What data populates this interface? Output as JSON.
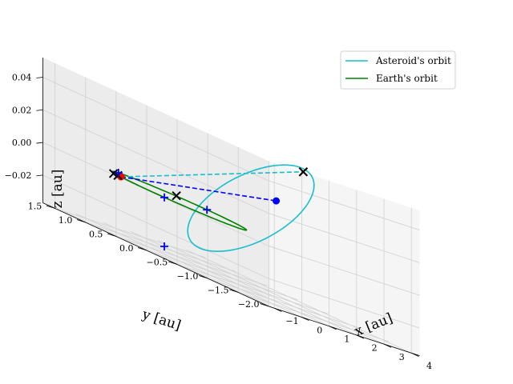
{
  "chart_data": {
    "type": "line",
    "projection": "3d",
    "xlabel": "x [au]",
    "ylabel": "y [au]",
    "zlabel": "z [au]",
    "xlim": [
      -1.2,
      4.3
    ],
    "ylim": [
      -2.0,
      1.7
    ],
    "zlim": [
      -0.037,
      0.052
    ],
    "x_ticks": [
      -1,
      0,
      1,
      2,
      3,
      4
    ],
    "y_ticks": [
      1.5,
      1.0,
      0.5,
      0.0,
      -0.5,
      -1.0,
      -1.5,
      -2.0
    ],
    "z_ticks": [
      0.04,
      0.02,
      0.0,
      -0.02
    ],
    "x_tick_labels": [
      "−1",
      "0",
      "1",
      "2",
      "3",
      "4"
    ],
    "y_tick_labels": [
      "1.5",
      "1.0",
      "0.5",
      "0.0",
      "−0.5",
      "−1.0",
      "−1.5",
      "−2.0"
    ],
    "z_tick_labels": [
      "0.04",
      "0.02",
      "0.00",
      "−0.02"
    ],
    "grid": true,
    "legend_position": "top-right",
    "series": [
      {
        "name": "Asteroid's orbit",
        "kind": "ellipse-orbit",
        "color": "#17becf",
        "center": [
          1.6,
          -0.45,
          0.012
        ],
        "semi_axis_a": [
          2.65,
          0.35,
          0.033
        ],
        "semi_axis_b": [
          -0.12,
          0.55,
          0.0
        ]
      },
      {
        "name": "Earth's orbit",
        "kind": "circle-orbit",
        "color": "#008000",
        "center": [
          0,
          0,
          0
        ],
        "radius": 1.0
      }
    ],
    "dashed_lines": [
      {
        "color": "#17becf",
        "from": [
          -0.8,
          0.6,
          0.0
        ],
        "to": [
          3.4,
          -0.5,
          0.045
        ]
      },
      {
        "color": "#0000ff",
        "from": [
          -0.8,
          0.6,
          0.0
        ],
        "to": [
          2.3,
          -0.55,
          0.022
        ]
      }
    ],
    "points": [
      {
        "kind": "dot",
        "color": "#0000ff",
        "xyz": [
          2.3,
          -0.55,
          0.022
        ]
      },
      {
        "kind": "dot",
        "color": "#ff0000",
        "xyz": [
          -0.8,
          0.6,
          0.0
        ]
      },
      {
        "kind": "x",
        "color": "#ff0000",
        "xyz": [
          3.4,
          -0.5,
          0.045
        ]
      },
      {
        "kind": "x",
        "color": "#000000",
        "xyz": [
          3.4,
          -0.5,
          0.045
        ]
      },
      {
        "kind": "x",
        "color": "#000000",
        "xyz": [
          -0.8,
          0.65,
          0.0
        ]
      },
      {
        "kind": "x",
        "color": "#000000",
        "xyz": [
          -0.85,
          0.7,
          0.0
        ]
      },
      {
        "kind": "x",
        "color": "#000000",
        "xyz": [
          1.0,
          0.5,
          0.0
        ]
      },
      {
        "kind": "plus",
        "color": "#0000ff",
        "xyz": [
          -1.0,
          -0.2,
          0.0
        ]
      },
      {
        "kind": "plus",
        "color": "#0000ff",
        "xyz": [
          0.0,
          1.0,
          0.0
        ]
      },
      {
        "kind": "plus",
        "color": "#0000ff",
        "xyz": [
          1.0,
          0.0,
          0.0
        ]
      },
      {
        "kind": "plus",
        "color": "#0000ff",
        "xyz": [
          -1.0,
          -0.2,
          -0.03
        ]
      }
    ]
  }
}
